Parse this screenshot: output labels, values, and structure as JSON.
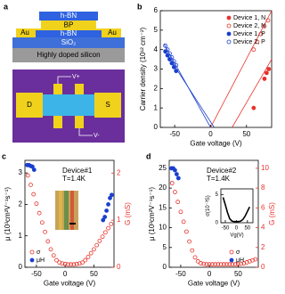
{
  "diagram": {
    "panel_label": "a",
    "stack": {
      "top_hbn": "h-BN",
      "bp": "BP",
      "bottom_hbn": "h-BN",
      "au_left": "Au",
      "au_right": "Au",
      "oxide": "SiO₂",
      "substrate": "Highly doped silicon"
    },
    "device": {
      "drain": "D",
      "source": "S",
      "v_plus": "V+",
      "v_minus": "V-"
    }
  },
  "chart_data": [
    {
      "type": "scatter",
      "panel_label": "b",
      "x_label": "Gate voltage (V)",
      "y_label": "Carrier density (10¹² cm⁻²)",
      "xlim": [
        -70,
        85
      ],
      "xticks": [
        -50,
        0,
        50
      ],
      "ylim": [
        0,
        6
      ],
      "yticks": [
        0,
        1,
        2,
        3,
        4,
        5,
        6
      ],
      "legend": "upper right",
      "series": [
        {
          "name": "Device 1, N",
          "color": "#e8322b",
          "marker": "filled",
          "x": [
            60,
            75,
            78,
            81
          ],
          "values": [
            1.0,
            2.5,
            2.8,
            3.0
          ],
          "fit_x": [
            30,
            85
          ],
          "fit_values": [
            0,
            3.5
          ]
        },
        {
          "name": "Device 2, N",
          "color": "#e8322b",
          "marker": "open",
          "x": [
            60,
            65,
            70,
            75,
            80
          ],
          "values": [
            4.0,
            4.4,
            4.8,
            5.2,
            5.5
          ],
          "fit_x": [
            0,
            85
          ],
          "fit_values": [
            0,
            6
          ]
        },
        {
          "name": "Device 1, P",
          "color": "#1a3fcf",
          "marker": "filled",
          "x": [
            -63,
            -60,
            -57,
            -54,
            -51,
            -48
          ],
          "values": [
            3.9,
            3.7,
            3.5,
            3.3,
            3.1,
            2.9
          ],
          "fit_x": [
            5,
            -65
          ],
          "fit_values": [
            0,
            4.0
          ]
        },
        {
          "name": "Device 2, P",
          "color": "#1a3fcf",
          "marker": "open",
          "x": [
            -63,
            -60,
            -57,
            -54,
            -51,
            -48
          ],
          "values": [
            4.2,
            4.0,
            3.8,
            3.6,
            3.4,
            3.2
          ],
          "fit_x": [
            0,
            -65
          ],
          "fit_values": [
            0,
            4.3
          ]
        }
      ]
    },
    {
      "type": "scatter",
      "panel_label": "c",
      "annotations": [
        "Device#1",
        "T=1.4K"
      ],
      "x_label": "Gate voltage (V)",
      "y_label": "μ (10³cm²V⁻¹s⁻¹)",
      "y2_label": "G (mS)",
      "y2_color": "#e8322b",
      "xlim": [
        -70,
        85
      ],
      "xticks": [
        -50,
        0,
        50
      ],
      "ylim": [
        0,
        3.4
      ],
      "yticks": [
        0,
        1,
        2,
        3
      ],
      "y2lim": [
        0,
        2.27
      ],
      "y2ticks": [
        0,
        1,
        2
      ],
      "legend": "lower left",
      "series": [
        {
          "name": "σ",
          "color": "#e8322b",
          "marker": "open",
          "axis": "y2",
          "x": [
            -65,
            -60,
            -55,
            -50,
            -45,
            -40,
            -35,
            -30,
            -25,
            -20,
            -15,
            -10,
            -5,
            0,
            5,
            10,
            15,
            20,
            25,
            30,
            35,
            40,
            45,
            50,
            55,
            60,
            65,
            70,
            75,
            80
          ],
          "values": [
            1.95,
            1.75,
            1.55,
            1.35,
            1.15,
            0.95,
            0.75,
            0.55,
            0.38,
            0.25,
            0.15,
            0.1,
            0.08,
            0.07,
            0.06,
            0.06,
            0.06,
            0.07,
            0.08,
            0.1,
            0.15,
            0.22,
            0.3,
            0.38,
            0.47,
            0.56,
            0.65,
            0.74,
            0.83,
            0.92
          ]
        },
        {
          "name": "μH",
          "color": "#1a3fcf",
          "marker": "filled",
          "x": [
            -66,
            -63,
            -60,
            -57,
            -54,
            66,
            69,
            72,
            75,
            78,
            81
          ],
          "values": [
            3.25,
            3.25,
            3.22,
            3.2,
            3.1,
            1.5,
            1.6,
            1.8,
            2.0,
            2.2,
            2.3
          ]
        }
      ]
    },
    {
      "type": "scatter",
      "panel_label": "d",
      "annotations": [
        "Device#2",
        "T=1.4K"
      ],
      "x_label": "Gate voltage (V)",
      "y_label": "μ (10³cm²V⁻¹s⁻¹)",
      "y2_label": "G (mS)",
      "y2_color": "#e8322b",
      "xlim": [
        -70,
        85
      ],
      "xticks": [
        -50,
        0,
        50
      ],
      "ylim": [
        0,
        27
      ],
      "yticks": [
        0,
        5,
        10,
        15,
        20,
        25
      ],
      "y2lim": [
        0,
        10.8
      ],
      "y2ticks": [
        0,
        2,
        4,
        6,
        8,
        10
      ],
      "legend": "lower right",
      "series": [
        {
          "name": "σ",
          "color": "#e8322b",
          "marker": "open",
          "axis": "y2",
          "x": [
            -65,
            -60,
            -55,
            -50,
            -45,
            -40,
            -35,
            -30,
            -25,
            -20,
            -15,
            -10,
            -5,
            0,
            5,
            10,
            15,
            20,
            25,
            30,
            35,
            40,
            45,
            50,
            55,
            60,
            65,
            70,
            75,
            80
          ],
          "values": [
            8.5,
            7.6,
            6.6,
            5.6,
            4.6,
            3.6,
            2.6,
            1.7,
            1.0,
            0.6,
            0.4,
            0.35,
            0.3,
            0.3,
            0.3,
            0.3,
            0.3,
            0.3,
            0.3,
            0.3,
            0.3,
            0.3,
            0.3,
            0.3,
            0.35,
            0.4,
            0.5,
            0.6,
            0.7,
            0.8
          ]
        },
        {
          "name": "μH",
          "color": "#1a3fcf",
          "marker": "filled",
          "x": [
            -66,
            -63,
            -60,
            -57,
            -54
          ],
          "values": [
            25,
            25,
            24.5,
            23.5,
            22.5
          ]
        }
      ]
    },
    {
      "type": "line",
      "x_label": "Vg(V)",
      "y_label": "σ(10⁻³S)",
      "color": "#000000",
      "xlim": [
        -70,
        75
      ],
      "xticks": [
        -50,
        0,
        50
      ],
      "ylim": [
        0,
        6
      ],
      "yticks": [
        0,
        5
      ],
      "x": [
        -60,
        -50,
        -40,
        -30,
        -20,
        -10,
        0,
        10,
        20,
        30,
        40,
        50,
        60
      ],
      "values": [
        4.5,
        3.2,
        1.8,
        0.7,
        0.3,
        0.2,
        0.2,
        0.2,
        0.3,
        0.6,
        1.2,
        2.0,
        2.8
      ]
    }
  ]
}
